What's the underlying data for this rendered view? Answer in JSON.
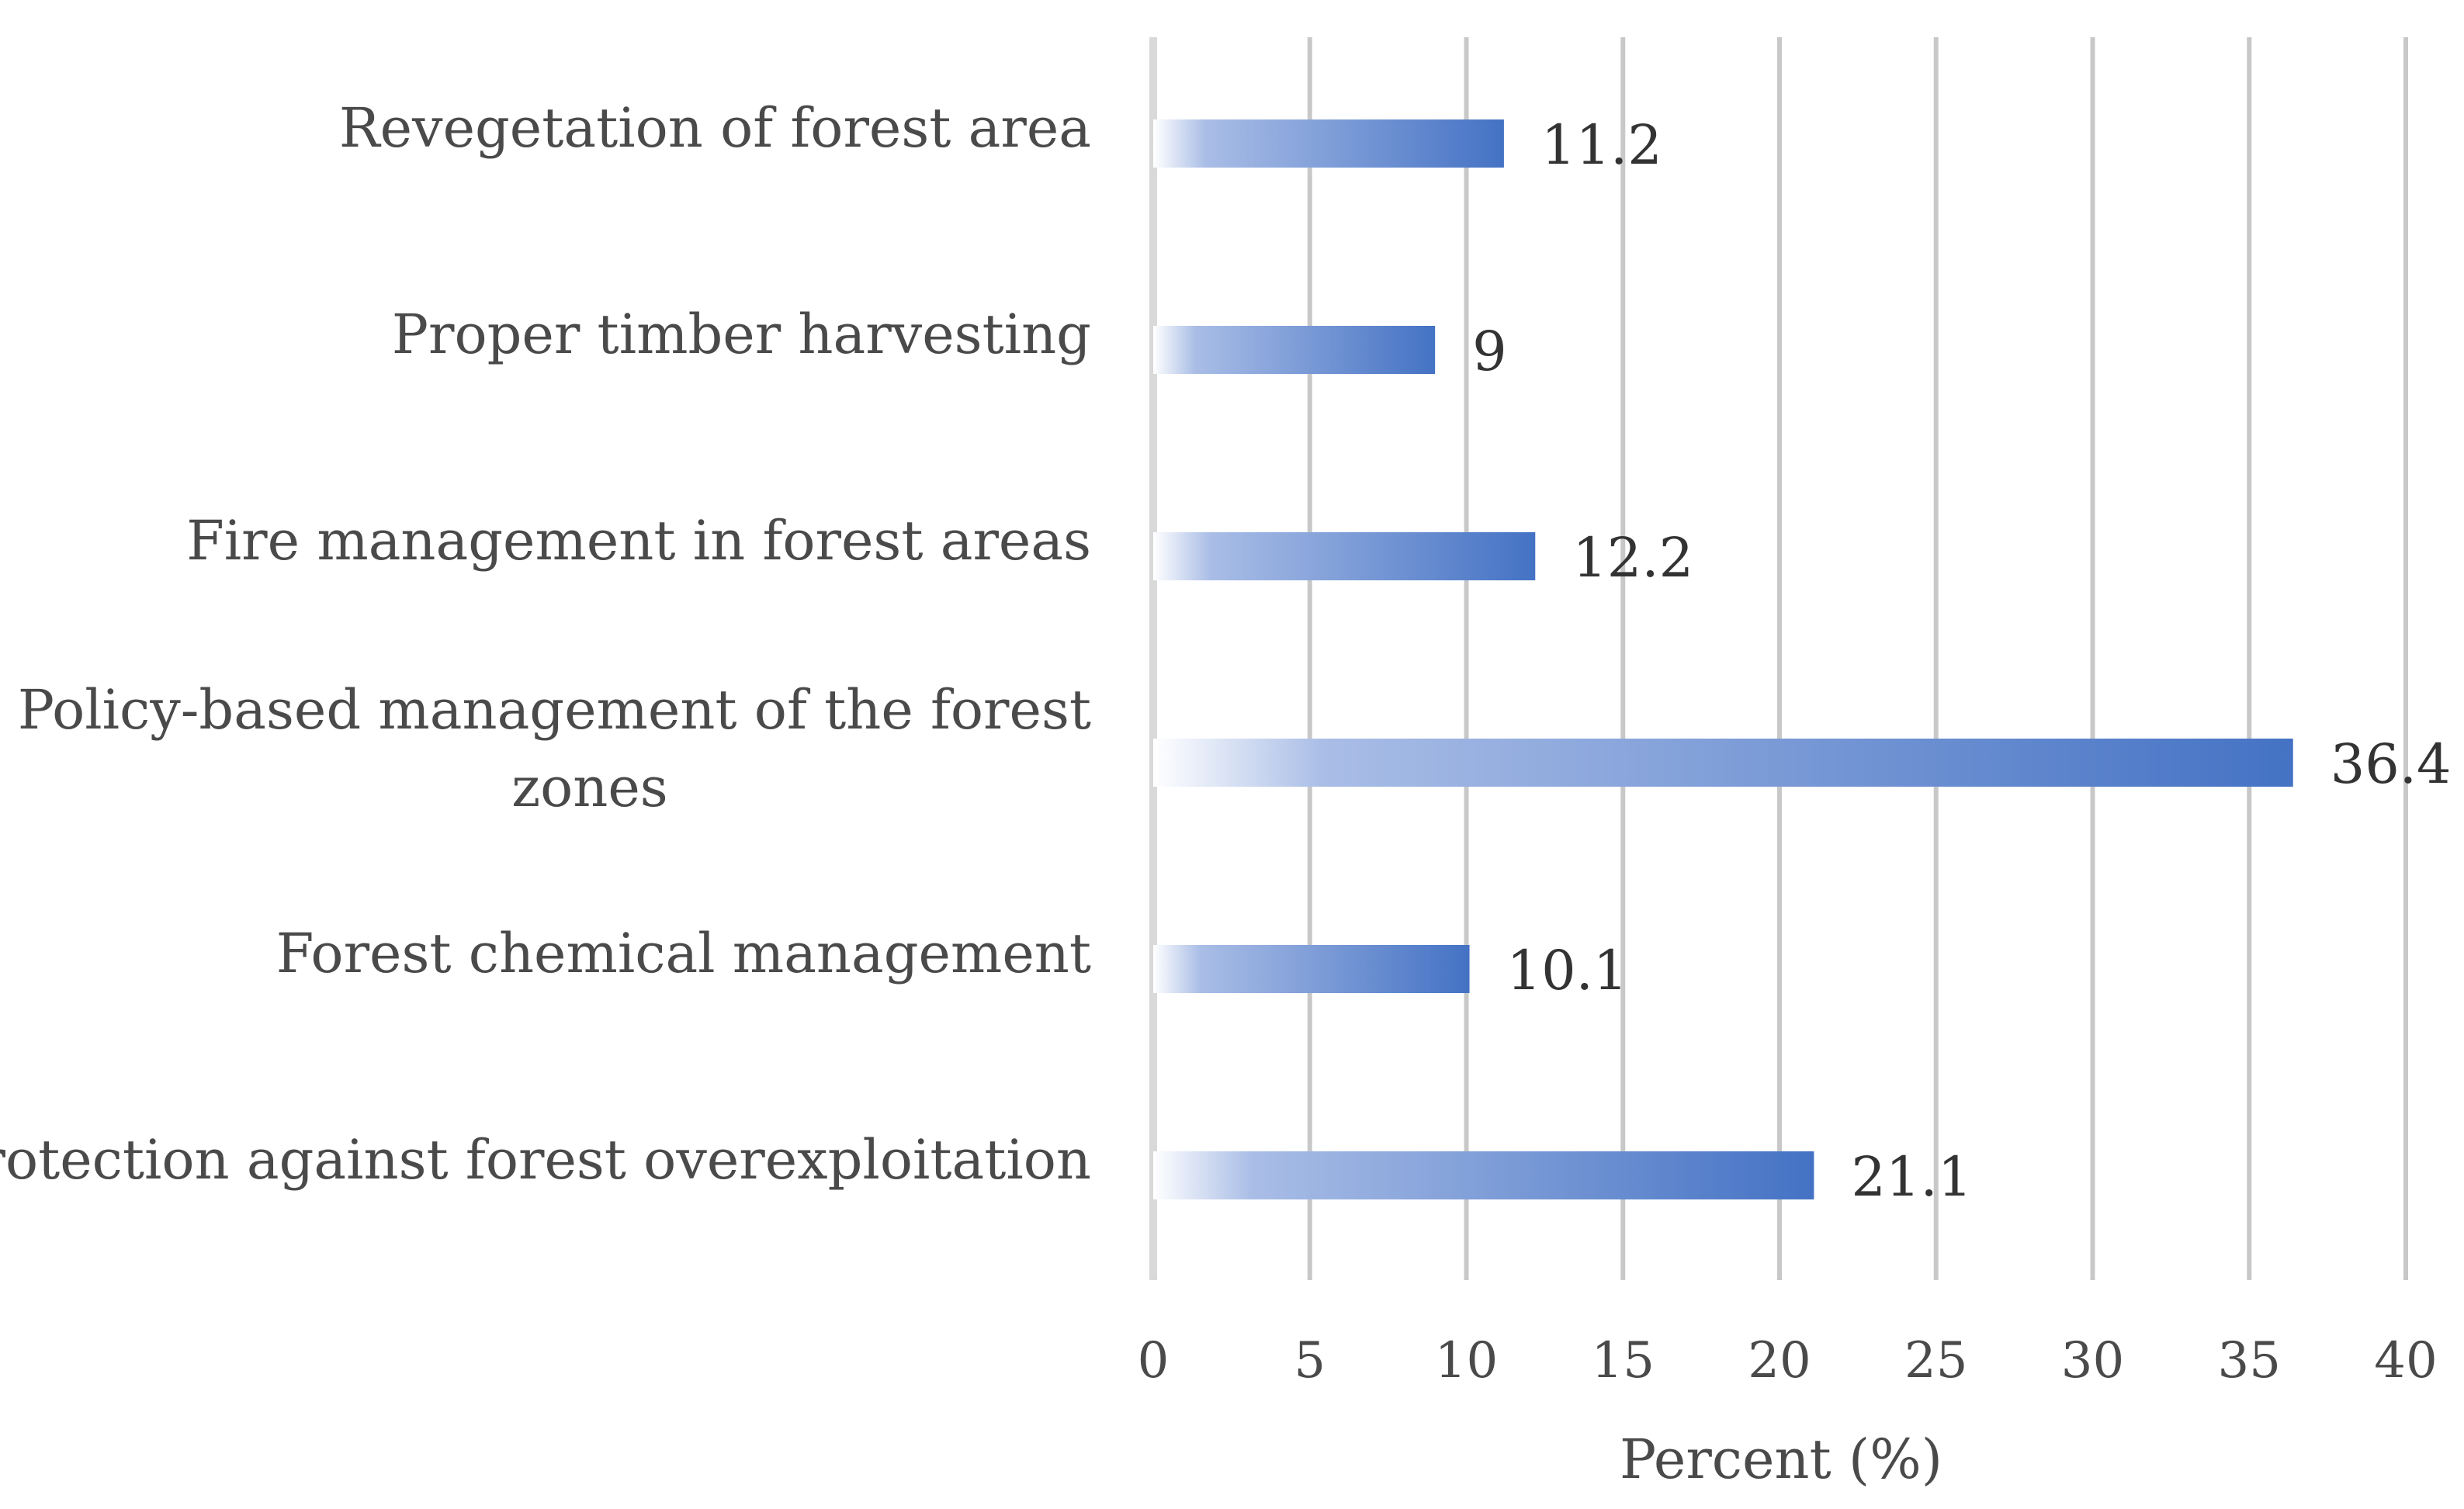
{
  "chart_data": {
    "type": "bar",
    "orientation": "horizontal",
    "categories": [
      "Revegetation of forest area",
      "Proper timber harvesting",
      "Fire management in forest areas",
      "Policy-based management of the forest zones",
      "Forest chemical management",
      "Protection against forest overexploitation"
    ],
    "category_lines": [
      [
        "Revegetation of forest area"
      ],
      [
        "Proper timber harvesting"
      ],
      [
        "Fire management in forest areas"
      ],
      [
        "Policy-based management of the forest",
        "zones"
      ],
      [
        "Forest chemical management"
      ],
      [
        "Protection against forest overexploitation"
      ]
    ],
    "values": [
      11.2,
      9,
      12.2,
      36.4,
      10.1,
      21.1
    ],
    "data_labels": [
      "11.2",
      "9",
      "12.2",
      "36.4",
      "10.1",
      "21.1"
    ],
    "xlabel": "Percent (%)",
    "ylabel": "",
    "xlim": [
      0,
      40
    ],
    "xticks": [
      0,
      5,
      10,
      15,
      20,
      25,
      30,
      35,
      40
    ],
    "grid": "vertical",
    "bar_color": "#4472C4",
    "bar_gradient": "white to #4472C4 from left",
    "gridline_color": "#C8C8C8"
  }
}
